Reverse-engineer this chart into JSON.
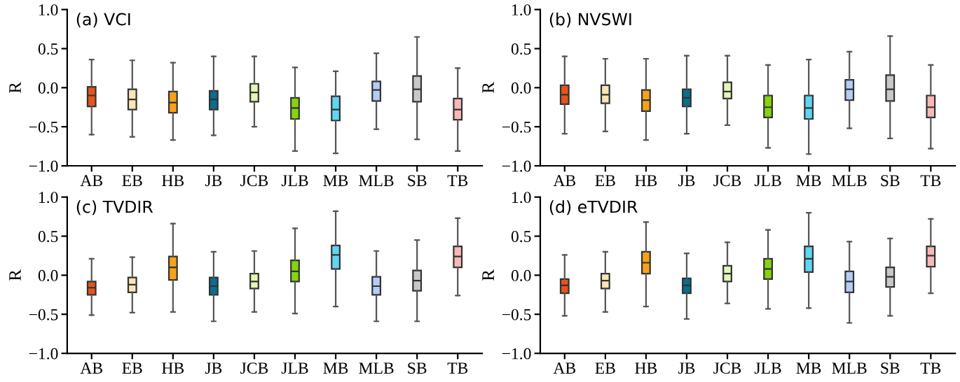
{
  "chart_data": [
    {
      "type": "box",
      "title": "(a) VCI",
      "ylabel": "R",
      "categories": [
        "AB",
        "EB",
        "HB",
        "JB",
        "JCB",
        "JLB",
        "MB",
        "MLB",
        "SB",
        "TB"
      ],
      "colors": [
        "#e8531b",
        "#fde4b4",
        "#f6a21a",
        "#0a6e8d",
        "#e3f7b7",
        "#86d40e",
        "#5fd6f2",
        "#b5cdf5",
        "#c8c8c8",
        "#f7b8b8"
      ],
      "ylim": [
        -1.0,
        1.0
      ],
      "yticks": [
        {
          "value": -1.0,
          "label": "−1.0"
        },
        {
          "value": -0.5,
          "label": "−0.5"
        },
        {
          "value": 0.0,
          "label": "0.0"
        },
        {
          "value": 0.5,
          "label": "0.5"
        },
        {
          "value": 1.0,
          "label": "1.0"
        }
      ],
      "grid": false,
      "boxes": [
        {
          "low": -0.6,
          "q1": -0.24,
          "median": -0.1,
          "q3": 0.01,
          "high": 0.36
        },
        {
          "low": -0.63,
          "q1": -0.28,
          "median": -0.15,
          "q3": -0.02,
          "high": 0.35
        },
        {
          "low": -0.67,
          "q1": -0.32,
          "median": -0.19,
          "q3": -0.05,
          "high": 0.32
        },
        {
          "low": -0.61,
          "q1": -0.28,
          "median": -0.15,
          "q3": -0.04,
          "high": 0.4
        },
        {
          "low": -0.5,
          "q1": -0.18,
          "median": -0.06,
          "q3": 0.05,
          "high": 0.4
        },
        {
          "low": -0.81,
          "q1": -0.4,
          "median": -0.26,
          "q3": -0.13,
          "high": 0.26
        },
        {
          "low": -0.84,
          "q1": -0.42,
          "median": -0.28,
          "q3": -0.11,
          "high": 0.21
        },
        {
          "low": -0.53,
          "q1": -0.17,
          "median": -0.03,
          "q3": 0.08,
          "high": 0.44
        },
        {
          "low": -0.66,
          "q1": -0.18,
          "median": -0.02,
          "q3": 0.15,
          "high": 0.65
        },
        {
          "low": -0.81,
          "q1": -0.41,
          "median": -0.28,
          "q3": -0.14,
          "high": 0.25
        }
      ]
    },
    {
      "type": "box",
      "title": "(b) NVSWI",
      "ylabel": "R",
      "categories": [
        "AB",
        "EB",
        "HB",
        "JB",
        "JCB",
        "JLB",
        "MB",
        "MLB",
        "SB",
        "TB"
      ],
      "colors": [
        "#e8531b",
        "#fde4b4",
        "#f6a21a",
        "#0a6e8d",
        "#e3f7b7",
        "#86d40e",
        "#5fd6f2",
        "#b5cdf5",
        "#c8c8c8",
        "#f7b8b8"
      ],
      "ylim": [
        -1.0,
        1.0
      ],
      "yticks": [
        {
          "value": -1.0,
          "label": "−1.0"
        },
        {
          "value": -0.5,
          "label": "−0.5"
        },
        {
          "value": 0.0,
          "label": "0.0"
        },
        {
          "value": 0.5,
          "label": "0.5"
        },
        {
          "value": 1.0,
          "label": "1.0"
        }
      ],
      "grid": false,
      "boxes": [
        {
          "low": -0.59,
          "q1": -0.21,
          "median": -0.09,
          "q3": 0.03,
          "high": 0.4
        },
        {
          "low": -0.56,
          "q1": -0.2,
          "median": -0.09,
          "q3": 0.03,
          "high": 0.37
        },
        {
          "low": -0.67,
          "q1": -0.3,
          "median": -0.16,
          "q3": -0.03,
          "high": 0.37
        },
        {
          "low": -0.59,
          "q1": -0.24,
          "median": -0.13,
          "q3": -0.02,
          "high": 0.41
        },
        {
          "low": -0.48,
          "q1": -0.14,
          "median": -0.05,
          "q3": 0.07,
          "high": 0.41
        },
        {
          "low": -0.77,
          "q1": -0.38,
          "median": -0.25,
          "q3": -0.1,
          "high": 0.29
        },
        {
          "low": -0.85,
          "q1": -0.4,
          "median": -0.26,
          "q3": -0.1,
          "high": 0.36
        },
        {
          "low": -0.52,
          "q1": -0.16,
          "median": -0.02,
          "q3": 0.1,
          "high": 0.46
        },
        {
          "low": -0.65,
          "q1": -0.17,
          "median": -0.02,
          "q3": 0.16,
          "high": 0.66
        },
        {
          "low": -0.78,
          "q1": -0.38,
          "median": -0.25,
          "q3": -0.1,
          "high": 0.29
        }
      ]
    },
    {
      "type": "box",
      "title": "(c) TVDIR",
      "ylabel": "R",
      "categories": [
        "AB",
        "EB",
        "HB",
        "JB",
        "JCB",
        "JLB",
        "MB",
        "MLB",
        "SB",
        "TB"
      ],
      "colors": [
        "#e8531b",
        "#fde4b4",
        "#f6a21a",
        "#0a6e8d",
        "#e3f7b7",
        "#86d40e",
        "#5fd6f2",
        "#b5cdf5",
        "#c8c8c8",
        "#f7b8b8"
      ],
      "ylim": [
        -1.0,
        1.0
      ],
      "yticks": [
        {
          "value": -1.0,
          "label": "−1.0"
        },
        {
          "value": -0.5,
          "label": "−0.5"
        },
        {
          "value": 0.0,
          "label": "0.0"
        },
        {
          "value": 0.5,
          "label": "0.5"
        },
        {
          "value": 1.0,
          "label": "1.0"
        }
      ],
      "grid": false,
      "boxes": [
        {
          "low": -0.51,
          "q1": -0.25,
          "median": -0.16,
          "q3": -0.08,
          "high": 0.21
        },
        {
          "low": -0.48,
          "q1": -0.22,
          "median": -0.12,
          "q3": -0.03,
          "high": 0.23
        },
        {
          "low": -0.47,
          "q1": -0.06,
          "median": 0.1,
          "q3": 0.24,
          "high": 0.66
        },
        {
          "low": -0.59,
          "q1": -0.25,
          "median": -0.14,
          "q3": -0.03,
          "high": 0.3
        },
        {
          "low": -0.47,
          "q1": -0.17,
          "median": -0.08,
          "q3": 0.02,
          "high": 0.31
        },
        {
          "low": -0.49,
          "q1": -0.08,
          "median": 0.05,
          "q3": 0.19,
          "high": 0.6
        },
        {
          "low": -0.4,
          "q1": 0.08,
          "median": 0.26,
          "q3": 0.38,
          "high": 0.82
        },
        {
          "low": -0.59,
          "q1": -0.25,
          "median": -0.14,
          "q3": -0.02,
          "high": 0.31
        },
        {
          "low": -0.59,
          "q1": -0.2,
          "median": -0.07,
          "q3": 0.06,
          "high": 0.45
        },
        {
          "low": -0.26,
          "q1": 0.1,
          "median": 0.24,
          "q3": 0.37,
          "high": 0.73
        }
      ]
    },
    {
      "type": "box",
      "title": "(d) eTVDIR",
      "ylabel": "R",
      "categories": [
        "AB",
        "EB",
        "HB",
        "JB",
        "JCB",
        "JLB",
        "MB",
        "MLB",
        "SB",
        "TB"
      ],
      "colors": [
        "#e8531b",
        "#fde4b4",
        "#f6a21a",
        "#0a6e8d",
        "#e3f7b7",
        "#86d40e",
        "#5fd6f2",
        "#b5cdf5",
        "#c8c8c8",
        "#f7b8b8"
      ],
      "ylim": [
        -1.0,
        1.0
      ],
      "yticks": [
        {
          "value": -1.0,
          "label": "−1.0"
        },
        {
          "value": -0.5,
          "label": "−0.5"
        },
        {
          "value": 0.0,
          "label": "0.0"
        },
        {
          "value": 0.5,
          "label": "0.5"
        },
        {
          "value": 1.0,
          "label": "1.0"
        }
      ],
      "grid": false,
      "boxes": [
        {
          "low": -0.52,
          "q1": -0.23,
          "median": -0.13,
          "q3": -0.05,
          "high": 0.26
        },
        {
          "low": -0.47,
          "q1": -0.17,
          "median": -0.07,
          "q3": 0.02,
          "high": 0.3
        },
        {
          "low": -0.4,
          "q1": 0.02,
          "median": 0.16,
          "q3": 0.3,
          "high": 0.68
        },
        {
          "low": -0.56,
          "q1": -0.23,
          "median": -0.13,
          "q3": -0.04,
          "high": 0.28
        },
        {
          "low": -0.36,
          "q1": -0.08,
          "median": 0.02,
          "q3": 0.12,
          "high": 0.42
        },
        {
          "low": -0.43,
          "q1": -0.05,
          "median": 0.08,
          "q3": 0.21,
          "high": 0.58
        },
        {
          "low": -0.42,
          "q1": 0.04,
          "median": 0.21,
          "q3": 0.37,
          "high": 0.8
        },
        {
          "low": -0.61,
          "q1": -0.22,
          "median": -0.08,
          "q3": 0.05,
          "high": 0.43
        },
        {
          "low": -0.52,
          "q1": -0.15,
          "median": -0.02,
          "q3": 0.1,
          "high": 0.47
        },
        {
          "low": -0.23,
          "q1": 0.11,
          "median": 0.25,
          "q3": 0.37,
          "high": 0.72
        }
      ]
    }
  ]
}
